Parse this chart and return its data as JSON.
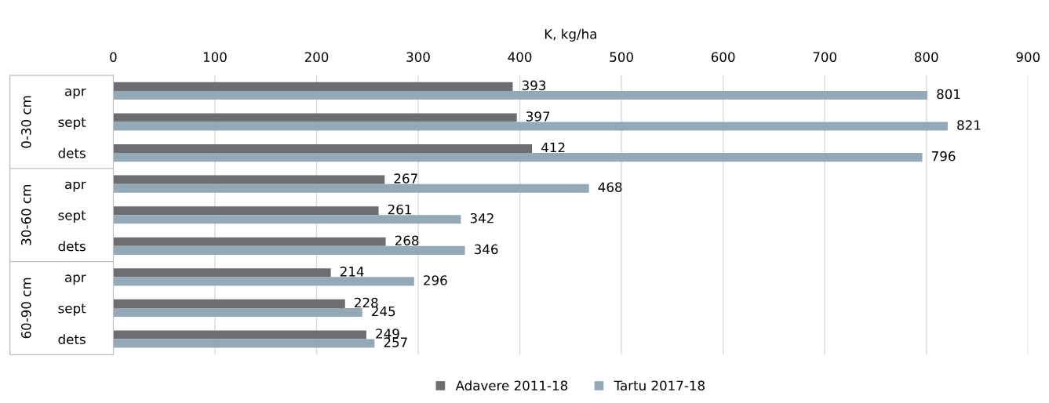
{
  "chart_data": {
    "type": "bar",
    "orientation": "horizontal",
    "xlabel": "K, kg/ha",
    "categories": [
      "apr",
      "sept",
      "dets",
      "apr",
      "sept",
      "dets",
      "apr",
      "sept",
      "dets"
    ],
    "annotations": [
      "0-30 cm",
      "30-60 cm",
      "60-90 cm"
    ],
    "series": [
      {
        "name": "Adavere 2011-18",
        "color": "#6d6e71",
        "values": [
          393,
          397,
          412,
          267,
          261,
          268,
          214,
          228,
          249
        ]
      },
      {
        "name": "Tartu 2017-18",
        "color": "#94a9b8",
        "values": [
          801,
          821,
          796,
          468,
          342,
          346,
          296,
          245,
          257
        ]
      }
    ],
    "xlim": [
      0,
      900
    ],
    "xticks": [
      0,
      100,
      200,
      300,
      400,
      500,
      600,
      700,
      800,
      900
    ],
    "grid": "x",
    "legend": "bottom",
    "data_labels": true
  }
}
